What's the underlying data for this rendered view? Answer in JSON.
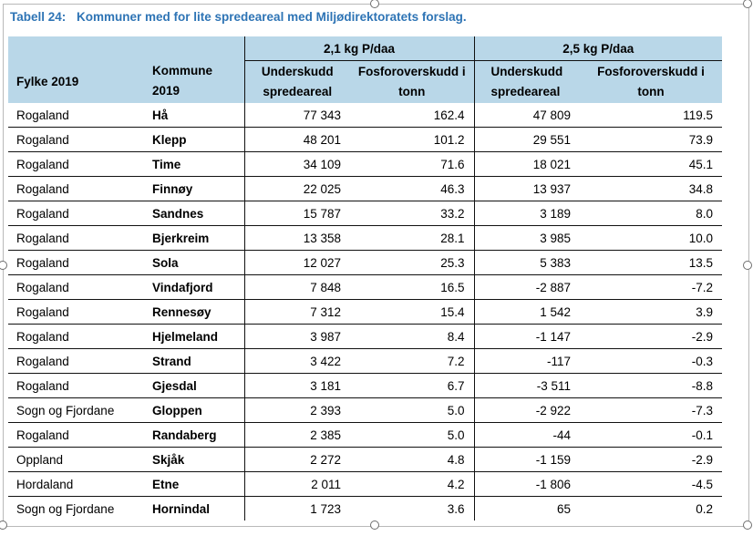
{
  "caption": {
    "label": "Tabell 24:",
    "title": "Kommuner med for lite spredeareal med Miljødirektoratets forslag."
  },
  "headers": {
    "fylke": "Fylke 2019",
    "kommune_line1": "Kommune",
    "kommune_line2": "2019",
    "group1": "2,1 kg P/daa",
    "group2": "2,5 kg P/daa",
    "under_line1": "Underskudd",
    "under_line2": "spredeareal",
    "fosfor_line1": "Fosforoverskudd i",
    "fosfor_line2": "tonn",
    "under2_line1": "Underskudd",
    "under2_line2": "spredeareal",
    "fosfor2_line1": "Fosforoverskudd i",
    "fosfor2_line2": "tonn"
  },
  "rows": [
    {
      "fylke": "Rogaland",
      "kommune": "Hå",
      "u21": "77 343",
      "f21": "162.4",
      "u25": "47 809",
      "f25": "119.5"
    },
    {
      "fylke": "Rogaland",
      "kommune": "Klepp",
      "u21": "48 201",
      "f21": "101.2",
      "u25": "29 551",
      "f25": "73.9"
    },
    {
      "fylke": "Rogaland",
      "kommune": "Time",
      "u21": "34 109",
      "f21": "71.6",
      "u25": "18 021",
      "f25": "45.1"
    },
    {
      "fylke": "Rogaland",
      "kommune": "Finnøy",
      "u21": "22 025",
      "f21": "46.3",
      "u25": "13 937",
      "f25": "34.8"
    },
    {
      "fylke": "Rogaland",
      "kommune": "Sandnes",
      "u21": "15 787",
      "f21": "33.2",
      "u25": "3 189",
      "f25": "8.0"
    },
    {
      "fylke": "Rogaland",
      "kommune": "Bjerkreim",
      "u21": "13 358",
      "f21": "28.1",
      "u25": "3 985",
      "f25": "10.0"
    },
    {
      "fylke": "Rogaland",
      "kommune": "Sola",
      "u21": "12 027",
      "f21": "25.3",
      "u25": "5 383",
      "f25": "13.5"
    },
    {
      "fylke": "Rogaland",
      "kommune": "Vindafjord",
      "u21": "7 848",
      "f21": "16.5",
      "u25": "-2 887",
      "f25": "-7.2"
    },
    {
      "fylke": "Rogaland",
      "kommune": "Rennesøy",
      "u21": "7 312",
      "f21": "15.4",
      "u25": "1 542",
      "f25": "3.9"
    },
    {
      "fylke": "Rogaland",
      "kommune": "Hjelmeland",
      "u21": "3 987",
      "f21": "8.4",
      "u25": "-1 147",
      "f25": "-2.9"
    },
    {
      "fylke": "Rogaland",
      "kommune": "Strand",
      "u21": "3 422",
      "f21": "7.2",
      "u25": "-117",
      "f25": "-0.3"
    },
    {
      "fylke": "Rogaland",
      "kommune": "Gjesdal",
      "u21": "3 181",
      "f21": "6.7",
      "u25": "-3 511",
      "f25": "-8.8"
    },
    {
      "fylke": "Sogn og Fjordane",
      "kommune": "Gloppen",
      "u21": "2 393",
      "f21": "5.0",
      "u25": "-2 922",
      "f25": "-7.3"
    },
    {
      "fylke": "Rogaland",
      "kommune": "Randaberg",
      "u21": "2 385",
      "f21": "5.0",
      "u25": "-44",
      "f25": "-0.1"
    },
    {
      "fylke": "Oppland",
      "kommune": "Skjåk",
      "u21": "2 272",
      "f21": "4.8",
      "u25": "-1 159",
      "f25": "-2.9"
    },
    {
      "fylke": "Hordaland",
      "kommune": "Etne",
      "u21": "2 011",
      "f21": "4.2",
      "u25": "-1 806",
      "f25": "-4.5"
    },
    {
      "fylke": "Sogn og Fjordane",
      "kommune": "Hornindal",
      "u21": "1 723",
      "f21": "3.6",
      "u25": "65",
      "f25": "0.2"
    }
  ]
}
